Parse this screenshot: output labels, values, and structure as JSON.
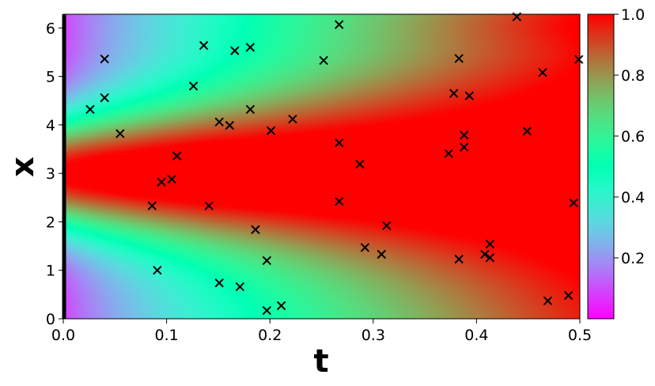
{
  "chart_data": {
    "type": "heatmap",
    "title": "",
    "xlabel": "t",
    "ylabel": "x",
    "xlim": [
      0.0,
      0.5
    ],
    "ylim": [
      0.0,
      6.283
    ],
    "x_ticks": [
      "0.0",
      "0.1",
      "0.2",
      "0.3",
      "0.4",
      "0.5"
    ],
    "x_tick_values": [
      0.0,
      0.1,
      0.2,
      0.3,
      0.4,
      0.5
    ],
    "y_ticks": [
      "0",
      "1",
      "2",
      "3",
      "4",
      "5",
      "6"
    ],
    "y_tick_values": [
      0,
      1,
      2,
      3,
      4,
      5,
      6
    ],
    "colormap": "rainbow",
    "color_range": [
      0.0,
      1.0
    ],
    "colorbar_ticks": [
      "0.2",
      "0.4",
      "0.6",
      "0.8",
      "1.0"
    ],
    "colorbar_tick_values": [
      0.2,
      0.4,
      0.6,
      0.8,
      1.0
    ],
    "field_description": "u(t,x) rising from ~0 at t=0 near x=0.7 and x=5.6, peak 1.0 at x≈3.0, red band widening with t",
    "grid": false,
    "boundary_line": {
      "x": 0.0,
      "color": "#000000"
    },
    "markers": {
      "symbol": "x",
      "color": "#000000",
      "points": [
        {
          "t": 0.026,
          "x": 4.32
        },
        {
          "t": 0.04,
          "x": 5.36
        },
        {
          "t": 0.04,
          "x": 4.56
        },
        {
          "t": 0.055,
          "x": 3.82
        },
        {
          "t": 0.086,
          "x": 2.33
        },
        {
          "t": 0.091,
          "x": 1.0
        },
        {
          "t": 0.095,
          "x": 2.82
        },
        {
          "t": 0.105,
          "x": 2.88
        },
        {
          "t": 0.11,
          "x": 3.36
        },
        {
          "t": 0.126,
          "x": 4.8
        },
        {
          "t": 0.136,
          "x": 5.64
        },
        {
          "t": 0.141,
          "x": 2.33
        },
        {
          "t": 0.151,
          "x": 4.06
        },
        {
          "t": 0.151,
          "x": 0.74
        },
        {
          "t": 0.161,
          "x": 3.99
        },
        {
          "t": 0.166,
          "x": 5.53
        },
        {
          "t": 0.171,
          "x": 0.66
        },
        {
          "t": 0.181,
          "x": 5.6
        },
        {
          "t": 0.181,
          "x": 4.32
        },
        {
          "t": 0.186,
          "x": 1.84
        },
        {
          "t": 0.197,
          "x": 1.2
        },
        {
          "t": 0.197,
          "x": 0.17
        },
        {
          "t": 0.201,
          "x": 3.88
        },
        {
          "t": 0.211,
          "x": 0.27
        },
        {
          "t": 0.222,
          "x": 4.12
        },
        {
          "t": 0.252,
          "x": 5.33
        },
        {
          "t": 0.267,
          "x": 6.07
        },
        {
          "t": 0.267,
          "x": 3.63
        },
        {
          "t": 0.267,
          "x": 2.42
        },
        {
          "t": 0.287,
          "x": 3.19
        },
        {
          "t": 0.292,
          "x": 1.47
        },
        {
          "t": 0.308,
          "x": 1.33
        },
        {
          "t": 0.313,
          "x": 1.92
        },
        {
          "t": 0.373,
          "x": 3.41
        },
        {
          "t": 0.378,
          "x": 4.65
        },
        {
          "t": 0.383,
          "x": 5.37
        },
        {
          "t": 0.383,
          "x": 1.23
        },
        {
          "t": 0.388,
          "x": 3.79
        },
        {
          "t": 0.388,
          "x": 3.54
        },
        {
          "t": 0.393,
          "x": 4.6
        },
        {
          "t": 0.408,
          "x": 1.33
        },
        {
          "t": 0.413,
          "x": 1.54
        },
        {
          "t": 0.413,
          "x": 1.26
        },
        {
          "t": 0.439,
          "x": 6.23
        },
        {
          "t": 0.449,
          "x": 3.87
        },
        {
          "t": 0.464,
          "x": 5.08
        },
        {
          "t": 0.469,
          "x": 0.37
        },
        {
          "t": 0.489,
          "x": 0.48
        },
        {
          "t": 0.494,
          "x": 2.39
        },
        {
          "t": 0.499,
          "x": 5.35
        }
      ]
    }
  }
}
